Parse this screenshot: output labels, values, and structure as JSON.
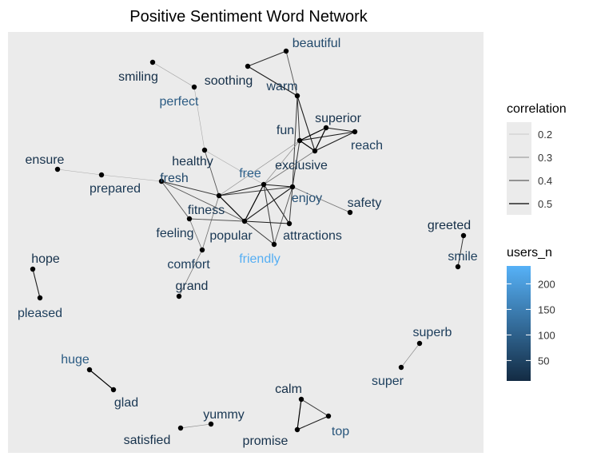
{
  "chart_data": {
    "type": "network",
    "title": "Positive Sentiment Word Network",
    "nodes": [
      {
        "name": "beautiful",
        "users_n": 60
      },
      {
        "name": "smiling",
        "users_n": 15
      },
      {
        "name": "soothing",
        "users_n": 15
      },
      {
        "name": "warm",
        "users_n": 40
      },
      {
        "name": "perfect",
        "users_n": 90
      },
      {
        "name": "superior",
        "users_n": 20
      },
      {
        "name": "fun",
        "users_n": 30
      },
      {
        "name": "reach",
        "users_n": 40
      },
      {
        "name": "healthy",
        "users_n": 20
      },
      {
        "name": "exclusive",
        "users_n": 25
      },
      {
        "name": "ensure",
        "users_n": 20
      },
      {
        "name": "free",
        "users_n": 100
      },
      {
        "name": "fresh",
        "users_n": 60
      },
      {
        "name": "prepared",
        "users_n": 30
      },
      {
        "name": "enjoy",
        "users_n": 70
      },
      {
        "name": "safety",
        "users_n": 30
      },
      {
        "name": "fitness",
        "users_n": 30
      },
      {
        "name": "greeted",
        "users_n": 15
      },
      {
        "name": "feeling",
        "users_n": 30
      },
      {
        "name": "popular",
        "users_n": 30
      },
      {
        "name": "attractions",
        "users_n": 30
      },
      {
        "name": "smile",
        "users_n": 40
      },
      {
        "name": "hope",
        "users_n": 20
      },
      {
        "name": "friendly",
        "users_n": 230
      },
      {
        "name": "comfort",
        "users_n": 40
      },
      {
        "name": "grand",
        "users_n": 20
      },
      {
        "name": "pleased",
        "users_n": 40
      },
      {
        "name": "superb",
        "users_n": 40
      },
      {
        "name": "super",
        "users_n": 45
      },
      {
        "name": "huge",
        "users_n": 90
      },
      {
        "name": "glad",
        "users_n": 30
      },
      {
        "name": "calm",
        "users_n": 15
      },
      {
        "name": "yummy",
        "users_n": 30
      },
      {
        "name": "top",
        "users_n": 80
      },
      {
        "name": "satisfied",
        "users_n": 20
      },
      {
        "name": "promise",
        "users_n": 20
      }
    ],
    "edges": [
      {
        "source": "smiling",
        "target": "perfect",
        "correlation": 0.22
      },
      {
        "source": "perfect",
        "target": "healthy",
        "correlation": 0.2
      },
      {
        "source": "soothing",
        "target": "beautiful",
        "correlation": 0.42
      },
      {
        "source": "beautiful",
        "target": "warm",
        "correlation": 0.35
      },
      {
        "source": "soothing",
        "target": "warm",
        "correlation": 0.45
      },
      {
        "source": "warm",
        "target": "fun",
        "correlation": 0.4
      },
      {
        "source": "warm",
        "target": "exclusive",
        "correlation": 0.45
      },
      {
        "source": "warm",
        "target": "enjoy",
        "correlation": 0.4
      },
      {
        "source": "fun",
        "target": "superior",
        "correlation": 0.5
      },
      {
        "source": "fun",
        "target": "reach",
        "correlation": 0.45
      },
      {
        "source": "fun",
        "target": "exclusive",
        "correlation": 0.5
      },
      {
        "source": "fun",
        "target": "enjoy",
        "correlation": 0.4
      },
      {
        "source": "superior",
        "target": "reach",
        "correlation": 0.45
      },
      {
        "source": "superior",
        "target": "exclusive",
        "correlation": 0.5
      },
      {
        "source": "reach",
        "target": "exclusive",
        "correlation": 0.45
      },
      {
        "source": "fun",
        "target": "free",
        "correlation": 0.25
      },
      {
        "source": "fun",
        "target": "fitness",
        "correlation": 0.25
      },
      {
        "source": "healthy",
        "target": "free",
        "correlation": 0.2
      },
      {
        "source": "healthy",
        "target": "fitness",
        "correlation": 0.35
      },
      {
        "source": "ensure",
        "target": "prepared",
        "correlation": 0.2
      },
      {
        "source": "prepared",
        "target": "fresh",
        "correlation": 0.2
      },
      {
        "source": "fresh",
        "target": "fitness",
        "correlation": 0.4
      },
      {
        "source": "fresh",
        "target": "popular",
        "correlation": 0.35
      },
      {
        "source": "fresh",
        "target": "feeling",
        "correlation": 0.35
      },
      {
        "source": "fitness",
        "target": "free",
        "correlation": 0.45
      },
      {
        "source": "fitness",
        "target": "popular",
        "correlation": 0.5
      },
      {
        "source": "fitness",
        "target": "enjoy",
        "correlation": 0.4
      },
      {
        "source": "fitness",
        "target": "comfort",
        "correlation": 0.3
      },
      {
        "source": "feeling",
        "target": "popular",
        "correlation": 0.35
      },
      {
        "source": "feeling",
        "target": "comfort",
        "correlation": 0.3
      },
      {
        "source": "free",
        "target": "enjoy",
        "correlation": 0.45
      },
      {
        "source": "free",
        "target": "popular",
        "correlation": 0.5
      },
      {
        "source": "free",
        "target": "attractions",
        "correlation": 0.45
      },
      {
        "source": "free",
        "target": "friendly",
        "correlation": 0.4
      },
      {
        "source": "free",
        "target": "exclusive",
        "correlation": 0.3
      },
      {
        "source": "enjoy",
        "target": "popular",
        "correlation": 0.45
      },
      {
        "source": "enjoy",
        "target": "attractions",
        "correlation": 0.4
      },
      {
        "source": "enjoy",
        "target": "safety",
        "correlation": 0.3
      },
      {
        "source": "enjoy",
        "target": "friendly",
        "correlation": 0.35
      },
      {
        "source": "popular",
        "target": "attractions",
        "correlation": 0.45
      },
      {
        "source": "popular",
        "target": "friendly",
        "correlation": 0.4
      },
      {
        "source": "comfort",
        "target": "grand",
        "correlation": 0.3
      },
      {
        "source": "greeted",
        "target": "smile",
        "correlation": 0.4
      },
      {
        "source": "hope",
        "target": "pleased",
        "correlation": 0.45
      },
      {
        "source": "superb",
        "target": "super",
        "correlation": 0.25
      },
      {
        "source": "huge",
        "target": "glad",
        "correlation": 0.5
      },
      {
        "source": "calm",
        "target": "top",
        "correlation": 0.4
      },
      {
        "source": "calm",
        "target": "promise",
        "correlation": 0.5
      },
      {
        "source": "top",
        "target": "promise",
        "correlation": 0.45
      },
      {
        "source": "yummy",
        "target": "satisfied",
        "correlation": 0.25
      }
    ],
    "legend": {
      "correlation": {
        "title": "correlation",
        "breaks": [
          0.2,
          0.3,
          0.4,
          0.5
        ]
      },
      "users_n": {
        "title": "users_n",
        "breaks": [
          50,
          100,
          150,
          200
        ],
        "range": [
          10,
          235
        ],
        "low_color": "#132B43",
        "high_color": "#56B1F7"
      }
    },
    "panel_background": "#ebebeb",
    "grid": false
  }
}
